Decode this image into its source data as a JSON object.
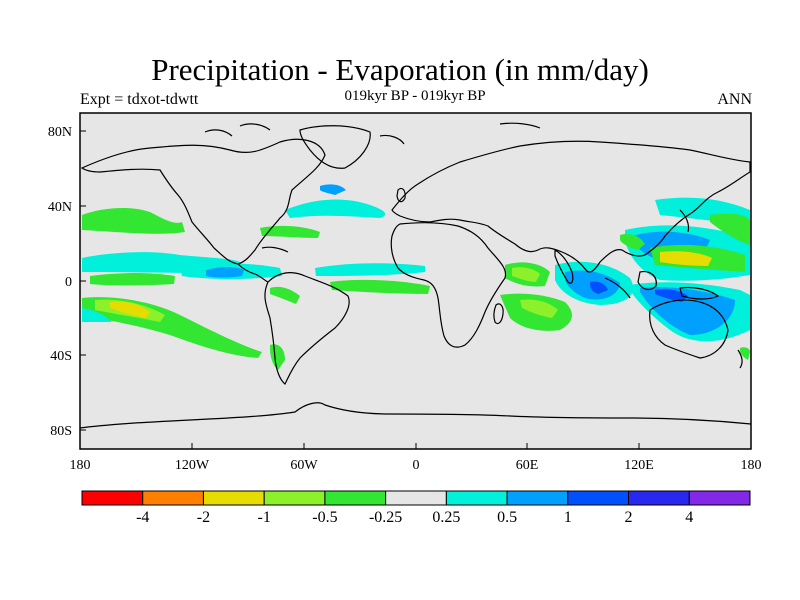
{
  "title": "Precipitation - Evaporation (in mm/day)",
  "left_label": "Expt = tdxot-tdwtt",
  "center_label": "019kyr BP - 019kyr BP",
  "right_label": "ANN",
  "map": {
    "lon_ticks": [
      "180",
      "120W",
      "60W",
      "0",
      "60E",
      "120E",
      "180"
    ],
    "lat_ticks": [
      "80N",
      "40N",
      "0",
      "40S",
      "80S"
    ]
  },
  "colorbar": {
    "colors": [
      "#ff0000",
      "#ff8000",
      "#e6dc00",
      "#8cf02a",
      "#32e632",
      "#e6e6e6",
      "#00f0dc",
      "#00a0ff",
      "#0050ff",
      "#2828f0",
      "#8228e6"
    ],
    "labels": [
      "-4",
      "-2",
      "-1",
      "-0.5",
      "-0.25",
      "0.25",
      "0.5",
      "1",
      "2",
      "4"
    ]
  }
}
